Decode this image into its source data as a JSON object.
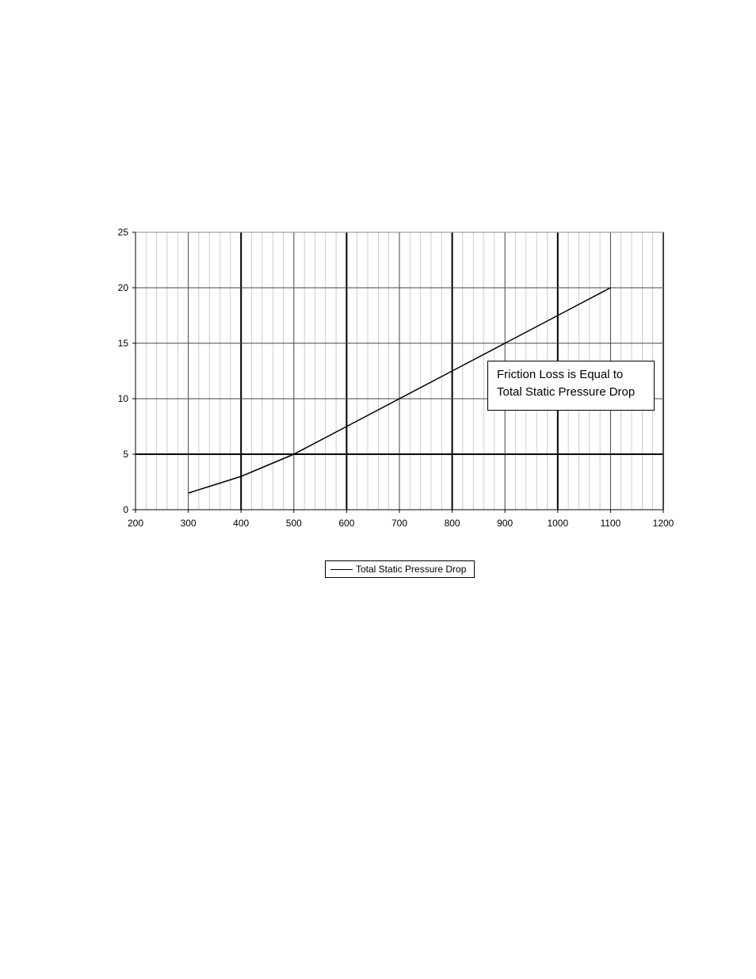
{
  "chart_data": {
    "type": "line",
    "title": "",
    "xlabel": "",
    "ylabel": "",
    "xlim": [
      200,
      1200
    ],
    "ylim": [
      0,
      25
    ],
    "x_ticks": [
      200,
      300,
      400,
      500,
      600,
      700,
      800,
      900,
      1000,
      1100,
      1200
    ],
    "y_ticks": [
      0,
      5,
      10,
      15,
      20,
      25
    ],
    "x_tick_labels": [
      "200",
      "300",
      "400",
      "500",
      "600",
      "700",
      "800",
      "900",
      "1000",
      "1100",
      "1200"
    ],
    "y_tick_labels": [
      "0",
      "5",
      "10",
      "15",
      "20",
      "25"
    ],
    "grid": true,
    "legend_position": "bottom-center",
    "series": [
      {
        "name": "Total Static Pressure Drop",
        "color": "#000000",
        "x": [
          300,
          400,
          500,
          600,
          700,
          800,
          900,
          1000,
          1100
        ],
        "y": [
          1.5,
          3,
          5,
          7.5,
          10,
          12.5,
          15,
          17.5,
          20
        ]
      }
    ],
    "annotation": {
      "line1": "Friction Loss is Equal to",
      "line2": "Total Static Pressure Drop"
    }
  }
}
